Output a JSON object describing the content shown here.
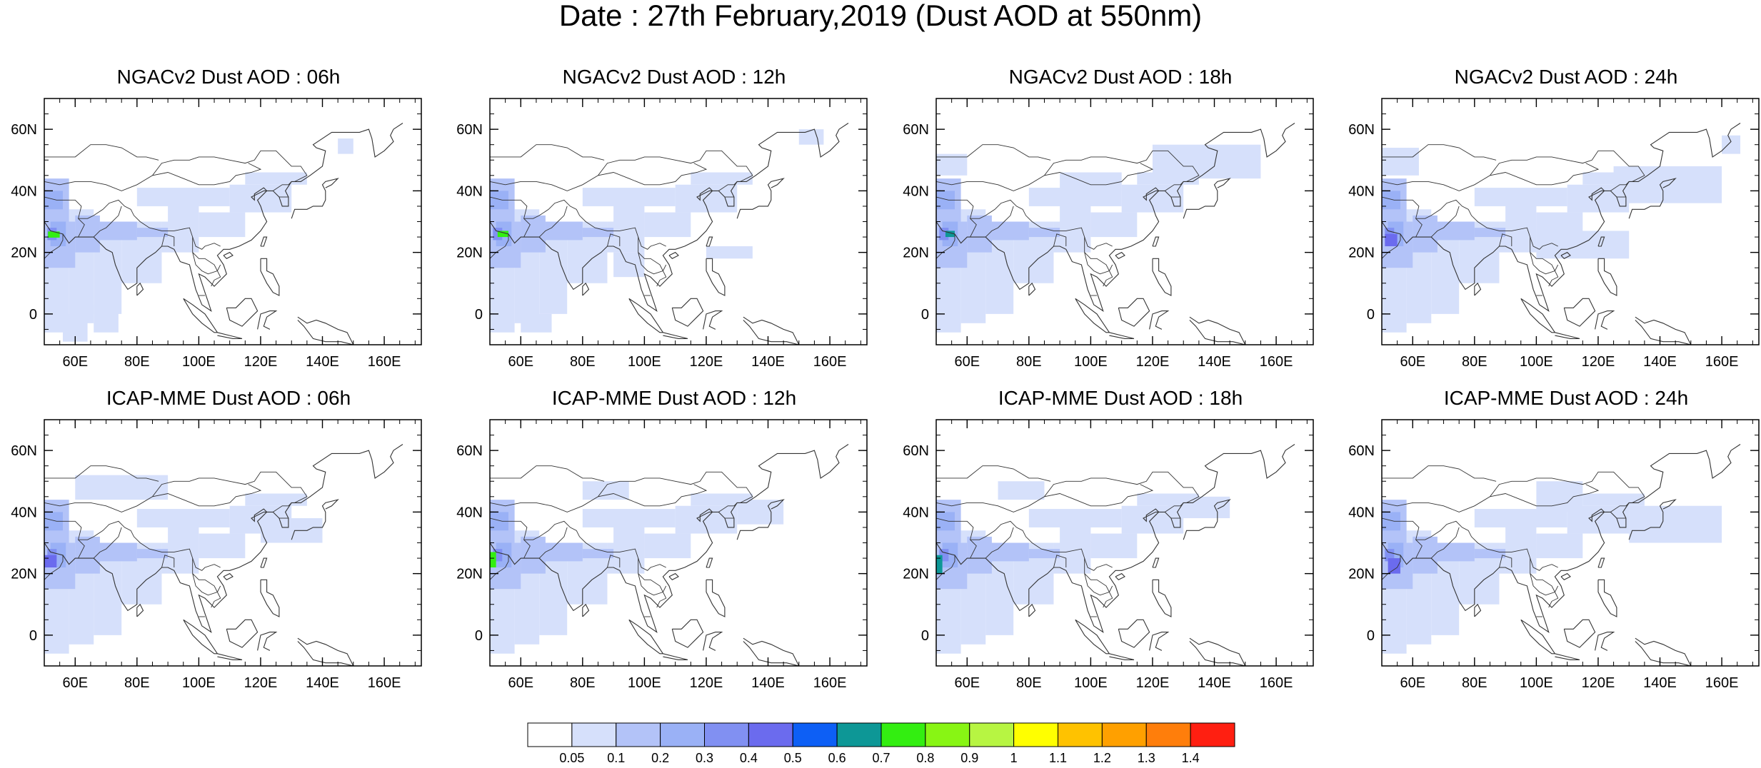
{
  "title": "Date : 27th February,2019 (Dust AOD at 550nm)",
  "lat_ticks": [
    "60N",
    "40N",
    "20N",
    "0"
  ],
  "lon_ticks": [
    "60E",
    "80E",
    "100E",
    "120E",
    "140E",
    "160E"
  ],
  "panels": [
    {
      "title": "NGACv2 Dust AOD : 06h"
    },
    {
      "title": "NGACv2 Dust AOD : 12h"
    },
    {
      "title": "NGACv2 Dust AOD : 18h"
    },
    {
      "title": "NGACv2 Dust AOD : 24h"
    },
    {
      "title": "ICAP-MME Dust AOD : 06h"
    },
    {
      "title": "ICAP-MME Dust AOD : 12h"
    },
    {
      "title": "ICAP-MME Dust AOD : 18h"
    },
    {
      "title": "ICAP-MME Dust AOD : 24h"
    }
  ],
  "colorbar": {
    "labels": [
      "0.05",
      "0.1",
      "0.2",
      "0.3",
      "0.4",
      "0.5",
      "0.6",
      "0.7",
      "0.8",
      "0.9",
      "1",
      "1.1",
      "1.2",
      "1.3",
      "1.4"
    ],
    "colors": [
      "#ffffff",
      "#d6e0fb",
      "#b3c3f8",
      "#9ab1f6",
      "#8190f2",
      "#6b6bee",
      "#0d5ff5",
      "#0d9796",
      "#33ee11",
      "#88f514",
      "#b7f542",
      "#ffff00",
      "#ffc200",
      "#ffa000",
      "#ff7e0b",
      "#ff1f11"
    ]
  }
}
